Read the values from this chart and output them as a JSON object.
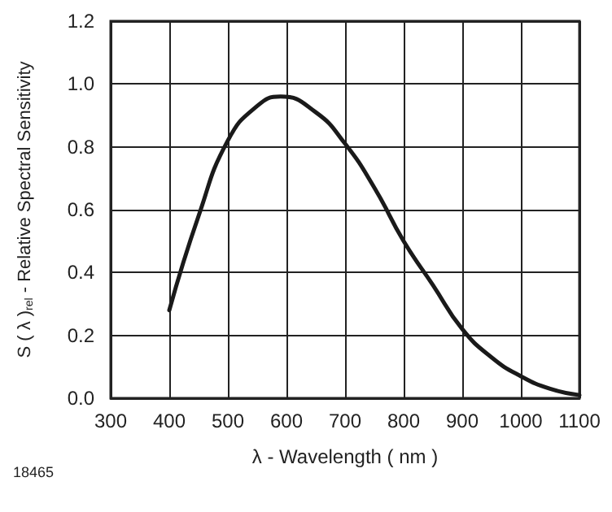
{
  "chart_data": {
    "type": "line",
    "xlabel": "λ - Wavelength ( nm )",
    "ylabel": "S ( λ )$_{rel}$ - Relative Spectral Sensitivity",
    "annotations": [
      "18465"
    ],
    "x": [
      400,
      450,
      500,
      550,
      590,
      650,
      700,
      750,
      800,
      850,
      900,
      950,
      1000,
      1050,
      1100
    ],
    "series": [
      {
        "color": "#1a1a1a",
        "values": [
          0.28,
          0.58,
          0.82,
          0.93,
          0.96,
          0.91,
          0.81,
          0.67,
          0.5,
          0.36,
          0.22,
          0.13,
          0.07,
          0.03,
          0.01
        ]
      }
    ],
    "xlim": [
      300,
      1100
    ],
    "xticks": [
      300,
      400,
      500,
      600,
      700,
      800,
      900,
      {
        "value": 1000,
        "label": "1000"
      },
      {
        "value": 1100,
        "label": "1100"
      }
    ],
    "ylim": [
      0,
      1.2
    ],
    "yticks": [
      {
        "value": 0,
        "label": "0.0"
      },
      0.2,
      0.4,
      0.6,
      0.8,
      {
        "value": 1,
        "label": "1.0"
      },
      1.2
    ],
    "grid": true,
    "marker": "none",
    "line_style": "solid"
  }
}
